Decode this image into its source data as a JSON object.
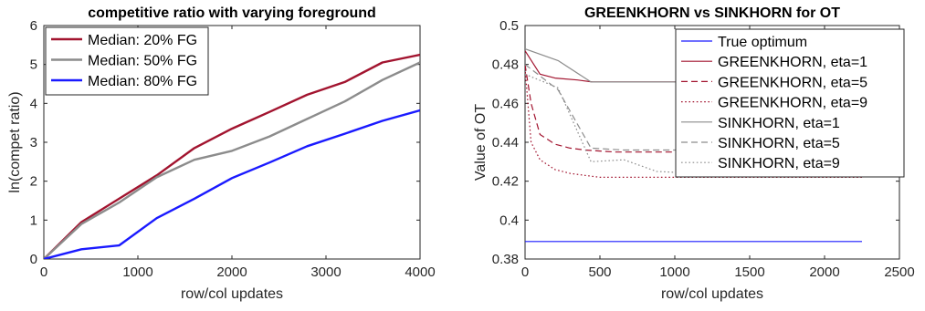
{
  "chart_data": [
    {
      "type": "line",
      "title": "competitive ratio with varying foreground",
      "xlabel": "row/col updates",
      "ylabel": "ln(compet ratio)",
      "xlim": [
        0,
        4000
      ],
      "ylim": [
        0,
        6
      ],
      "xticks": [
        "0",
        "1000",
        "2000",
        "3000",
        "4000"
      ],
      "yticks": [
        "0",
        "1",
        "2",
        "3",
        "4",
        "5",
        "6"
      ],
      "legend_position": "top-left",
      "series": [
        {
          "name": "Median: 20% FG",
          "color": "#a2142f",
          "dash": "solid",
          "x": [
            0,
            400,
            800,
            1200,
            1600,
            2000,
            2400,
            2800,
            3200,
            3600,
            4000
          ],
          "y": [
            0,
            0.95,
            1.55,
            2.15,
            2.85,
            3.35,
            3.78,
            4.22,
            4.55,
            5.05,
            5.25
          ]
        },
        {
          "name": "Median: 50% FG",
          "color": "#8c8c8c",
          "dash": "solid",
          "x": [
            0,
            400,
            800,
            1200,
            1600,
            2000,
            2400,
            2800,
            3200,
            3600,
            4000
          ],
          "y": [
            0,
            0.9,
            1.45,
            2.1,
            2.55,
            2.78,
            3.15,
            3.6,
            4.05,
            4.6,
            5.05
          ]
        },
        {
          "name": "Median: 80% FG",
          "color": "#1a1aff",
          "dash": "solid",
          "x": [
            0,
            400,
            800,
            1200,
            1600,
            2000,
            2400,
            2800,
            3200,
            3600,
            4000
          ],
          "y": [
            0,
            0.25,
            0.35,
            1.05,
            1.55,
            2.08,
            2.48,
            2.9,
            3.22,
            3.55,
            3.82
          ]
        }
      ]
    },
    {
      "type": "line",
      "title": "GREENKHORN vs SINKHORN for OT",
      "xlabel": "row/col updates",
      "ylabel": "Value of OT",
      "xlim": [
        0,
        2500
      ],
      "ylim": [
        0.38,
        0.5
      ],
      "xticks": [
        "0",
        "500",
        "1000",
        "1500",
        "2000",
        "2500"
      ],
      "yticks": [
        "0.38",
        "0.4",
        "0.42",
        "0.44",
        "0.46",
        "0.48",
        "0.5"
      ],
      "legend_position": "top-right",
      "series": [
        {
          "name": "True optimum",
          "color": "#1a1aff",
          "dash": "solid",
          "x": [
            0,
            2250
          ],
          "y": [
            0.389,
            0.389
          ]
        },
        {
          "name": "GREENKHORN, eta=1",
          "color": "#a2142f",
          "dash": "solid",
          "x": [
            0,
            100,
            200,
            350,
            450,
            700,
            1150
          ],
          "y": [
            0.487,
            0.475,
            0.473,
            0.472,
            0.471,
            0.471,
            0.471
          ]
        },
        {
          "name": "GREENKHORN, eta=5",
          "color": "#a2142f",
          "dash": "dashed",
          "x": [
            0,
            40,
            100,
            200,
            300,
            400,
            600,
            800,
            1000,
            1150
          ],
          "y": [
            0.48,
            0.46,
            0.444,
            0.439,
            0.437,
            0.436,
            0.435,
            0.435,
            0.435,
            0.435
          ]
        },
        {
          "name": "GREENKHORN, eta=9",
          "color": "#a2142f",
          "dash": "dotted",
          "x": [
            0,
            40,
            100,
            200,
            300,
            400,
            500,
            700,
            1000,
            2250
          ],
          "y": [
            0.478,
            0.44,
            0.431,
            0.426,
            0.424,
            0.423,
            0.422,
            0.422,
            0.422,
            0.422
          ]
        },
        {
          "name": "SINKHORN, eta=1",
          "color": "#8c8c8c",
          "dash": "solid",
          "x": [
            0,
            220,
            440,
            660,
            880,
            1150
          ],
          "y": [
            0.488,
            0.482,
            0.471,
            0.471,
            0.471,
            0.471
          ]
        },
        {
          "name": "SINKHORN, eta=5",
          "color": "#8c8c8c",
          "dash": "dashed",
          "x": [
            0,
            220,
            440,
            660,
            880,
            1150
          ],
          "y": [
            0.48,
            0.467,
            0.437,
            0.436,
            0.436,
            0.436
          ]
        },
        {
          "name": "SINKHORN, eta=9",
          "color": "#8c8c8c",
          "dash": "dotted",
          "x": [
            0,
            220,
            440,
            660,
            880,
            1150
          ],
          "y": [
            0.475,
            0.468,
            0.43,
            0.431,
            0.425,
            0.424
          ]
        }
      ]
    }
  ]
}
